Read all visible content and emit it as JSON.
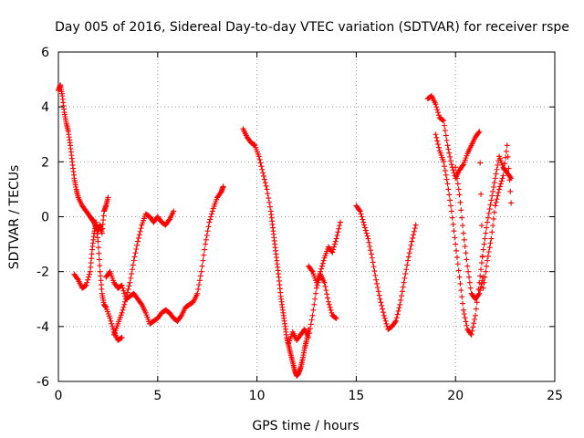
{
  "chart_data": {
    "type": "scatter",
    "title": "Day 005 of 2016, Sidereal Day-to-day VTEC variation (SDTVAR) for receiver rspe",
    "xlabel": "GPS time / hours",
    "ylabel": "SDTVAR / TECUs",
    "xlim": [
      0,
      25
    ],
    "ylim": [
      -6,
      6
    ],
    "xticks": [
      0,
      5,
      10,
      15,
      20,
      25
    ],
    "yticks": [
      -6,
      -4,
      -2,
      0,
      2,
      4,
      6
    ],
    "xtick_labels": [
      "0",
      "5",
      "10",
      "15",
      "20",
      "25"
    ],
    "ytick_labels": [
      "-6",
      "-4",
      "-2",
      "0",
      "2",
      "4",
      "6"
    ],
    "grid": true,
    "marker": "+",
    "color": "#ff0000",
    "series": [
      {
        "name": "trace-1",
        "x": [
          0.0,
          0.1,
          0.2,
          0.3,
          0.4,
          0.5,
          0.6,
          0.7,
          0.8,
          0.9,
          1.0,
          1.2,
          1.4,
          1.6,
          1.7,
          1.8,
          1.9,
          2.0,
          2.1,
          2.2,
          2.3,
          2.4,
          2.5
        ],
        "y": [
          4.6,
          4.8,
          4.4,
          3.8,
          3.4,
          3.1,
          2.6,
          2.0,
          1.4,
          1.0,
          0.7,
          0.4,
          0.2,
          0.0,
          -0.1,
          -0.2,
          -0.4,
          -0.5,
          -0.3,
          -0.6,
          0.2,
          0.4,
          0.7
        ]
      },
      {
        "name": "trace-2",
        "x": [
          0.8,
          1.0,
          1.2,
          1.4,
          1.6,
          1.7,
          1.8,
          1.9,
          2.0,
          2.1,
          2.2,
          2.3,
          2.4,
          2.6,
          2.8,
          3.0,
          3.2
        ],
        "y": [
          -2.1,
          -2.3,
          -2.6,
          -2.5,
          -2.0,
          -1.2,
          -0.6,
          -0.2,
          -0.9,
          -2.0,
          -2.8,
          -3.2,
          -3.3,
          -3.7,
          -4.2,
          -4.5,
          -4.4
        ]
      },
      {
        "name": "trace-3",
        "x": [
          2.4,
          2.6,
          2.8,
          3.0,
          3.2,
          3.4,
          3.6,
          3.8,
          4.0,
          4.2,
          4.4,
          4.6,
          4.8,
          5.0,
          5.2,
          5.4,
          5.6,
          5.8,
          6.0,
          6.2,
          6.4,
          6.6,
          6.8,
          7.0,
          7.2,
          7.4,
          7.6,
          7.8,
          8.0,
          8.2,
          8.3
        ],
        "y": [
          -2.2,
          -2.0,
          -2.4,
          -2.6,
          -2.5,
          -3.0,
          -2.9,
          -2.8,
          -3.0,
          -3.2,
          -3.5,
          -3.9,
          -3.8,
          -3.7,
          -3.5,
          -3.4,
          -3.5,
          -3.7,
          -3.8,
          -3.6,
          -3.3,
          -3.2,
          -3.1,
          -2.8,
          -2.0,
          -1.0,
          -0.2,
          0.3,
          0.7,
          0.9,
          1.1
        ]
      },
      {
        "name": "trace-4",
        "x": [
          2.8,
          3.0,
          3.2,
          3.4,
          3.6,
          3.8,
          4.0,
          4.2,
          4.4,
          4.6,
          4.8,
          5.0,
          5.2,
          5.4,
          5.6,
          5.8
        ],
        "y": [
          -4.3,
          -3.9,
          -3.5,
          -3.0,
          -2.4,
          -1.6,
          -0.9,
          -0.3,
          0.1,
          0.0,
          -0.2,
          0.0,
          -0.2,
          -0.3,
          -0.1,
          0.2
        ]
      },
      {
        "name": "trace-5",
        "x": [
          9.3,
          9.5,
          9.7,
          9.9,
          10.1,
          10.3,
          10.5,
          10.7,
          10.8,
          10.9,
          11.0,
          11.1,
          11.2,
          11.3,
          11.4,
          11.5,
          11.6,
          11.7,
          11.8,
          11.9,
          12.0,
          12.1,
          12.2,
          12.3,
          12.4,
          12.5,
          12.6
        ],
        "y": [
          3.2,
          2.9,
          2.7,
          2.6,
          2.2,
          1.6,
          1.0,
          0.2,
          -0.4,
          -1.0,
          -1.6,
          -2.2,
          -2.9,
          -3.4,
          -3.9,
          -4.4,
          -4.7,
          -5.0,
          -5.3,
          -5.6,
          -5.8,
          -5.7,
          -5.5,
          -5.2,
          -4.8,
          -4.5,
          -4.1
        ]
      },
      {
        "name": "trace-6",
        "x": [
          11.6,
          11.8,
          12.0,
          12.2,
          12.4,
          12.6,
          12.8,
          13.0,
          13.2,
          13.4,
          13.6,
          13.8,
          14.0
        ],
        "y": [
          -4.6,
          -4.2,
          -4.5,
          -4.3,
          -4.1,
          -4.4,
          -3.6,
          -2.6,
          -2.1,
          -2.4,
          -3.1,
          -3.6,
          -3.7
        ]
      },
      {
        "name": "trace-7",
        "x": [
          12.6,
          12.8,
          13.0,
          13.2,
          13.4,
          13.6,
          13.8,
          14.0,
          14.2
        ],
        "y": [
          -1.8,
          -2.0,
          -2.4,
          -2.0,
          -1.5,
          -1.1,
          -1.3,
          -0.8,
          -0.2
        ]
      },
      {
        "name": "trace-8",
        "x": [
          15.0,
          15.2,
          15.4,
          15.6,
          15.8,
          16.0,
          16.2,
          16.4,
          16.6,
          16.8,
          17.0,
          17.2,
          17.4,
          17.6,
          17.8,
          18.0
        ],
        "y": [
          0.4,
          0.2,
          -0.3,
          -0.8,
          -1.5,
          -2.3,
          -3.0,
          -3.6,
          -4.1,
          -4.0,
          -3.8,
          -3.2,
          -2.4,
          -1.6,
          -0.9,
          -0.3
        ]
      },
      {
        "name": "trace-9",
        "x": [
          18.6,
          18.8,
          19.0,
          19.2,
          19.4,
          19.6,
          19.8,
          20.0,
          20.2,
          20.4,
          20.6,
          20.8,
          21.0,
          21.2,
          21.4,
          21.6,
          21.8,
          22.0,
          22.2,
          22.4,
          22.6,
          22.8
        ],
        "y": [
          4.3,
          4.4,
          4.1,
          3.6,
          3.5,
          2.6,
          1.9,
          1.4,
          1.7,
          1.9,
          2.3,
          2.6,
          2.9,
          3.1,
          -2.6,
          -1.6,
          -0.8,
          0.4,
          1.0,
          1.5,
          2.6,
          0.5
        ]
      },
      {
        "name": "trace-10",
        "x": [
          19.0,
          19.2,
          19.4,
          19.6,
          19.8,
          20.0,
          20.2,
          20.4,
          20.6,
          20.8,
          21.0,
          21.2,
          21.4,
          21.6,
          21.8,
          22.0,
          22.2,
          22.4,
          22.6,
          22.8
        ],
        "y": [
          3.0,
          2.4,
          2.0,
          1.2,
          0.2,
          -1.0,
          -2.2,
          -3.4,
          -4.1,
          -4.3,
          -3.6,
          -2.4,
          -1.2,
          -0.2,
          0.6,
          1.4,
          2.2,
          1.8,
          1.6,
          1.4
        ]
      },
      {
        "name": "trace-11",
        "x": [
          20.0,
          20.2,
          20.4,
          20.6,
          20.8,
          21.0,
          21.2,
          21.4
        ],
        "y": [
          1.8,
          0.8,
          -0.6,
          -1.8,
          -2.8,
          -3.0,
          -2.8,
          -2.2
        ]
      }
    ]
  }
}
